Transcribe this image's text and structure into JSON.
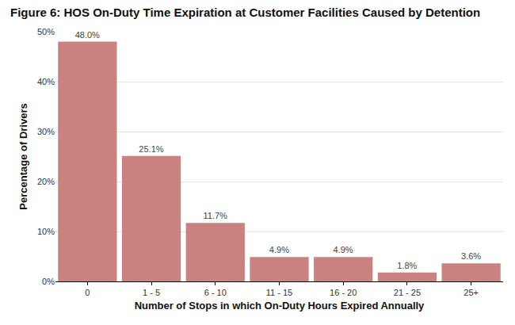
{
  "chart_data": {
    "type": "bar",
    "title": "Figure 6: HOS On-Duty Time Expiration at Customer Facilities Caused by Detention",
    "x_label": "Number of Stops in which On-Duty Hours Expired Annually",
    "y_label": "Percentage of Drivers",
    "categories": [
      "0",
      "1 - 5",
      "6 - 10",
      "11 - 15",
      "16 - 20",
      "21 - 25",
      "25+"
    ],
    "values": [
      48.0,
      25.1,
      11.7,
      4.9,
      4.9,
      1.8,
      3.6
    ],
    "value_labels": [
      "48.0%",
      "25.1%",
      "11.7%",
      "4.9%",
      "4.9%",
      "1.8%",
      "3.6%"
    ],
    "color": "#c9827f",
    "ylim": [
      0,
      50
    ],
    "yticks": [
      {
        "value": 0,
        "label": "0%"
      },
      {
        "value": 10,
        "label": "10%"
      },
      {
        "value": 20,
        "label": "20%"
      },
      {
        "value": 30,
        "label": "30%"
      },
      {
        "value": 40,
        "label": "40%"
      },
      {
        "value": 50,
        "label": "50%"
      }
    ],
    "grid": true,
    "data_labels": true
  }
}
